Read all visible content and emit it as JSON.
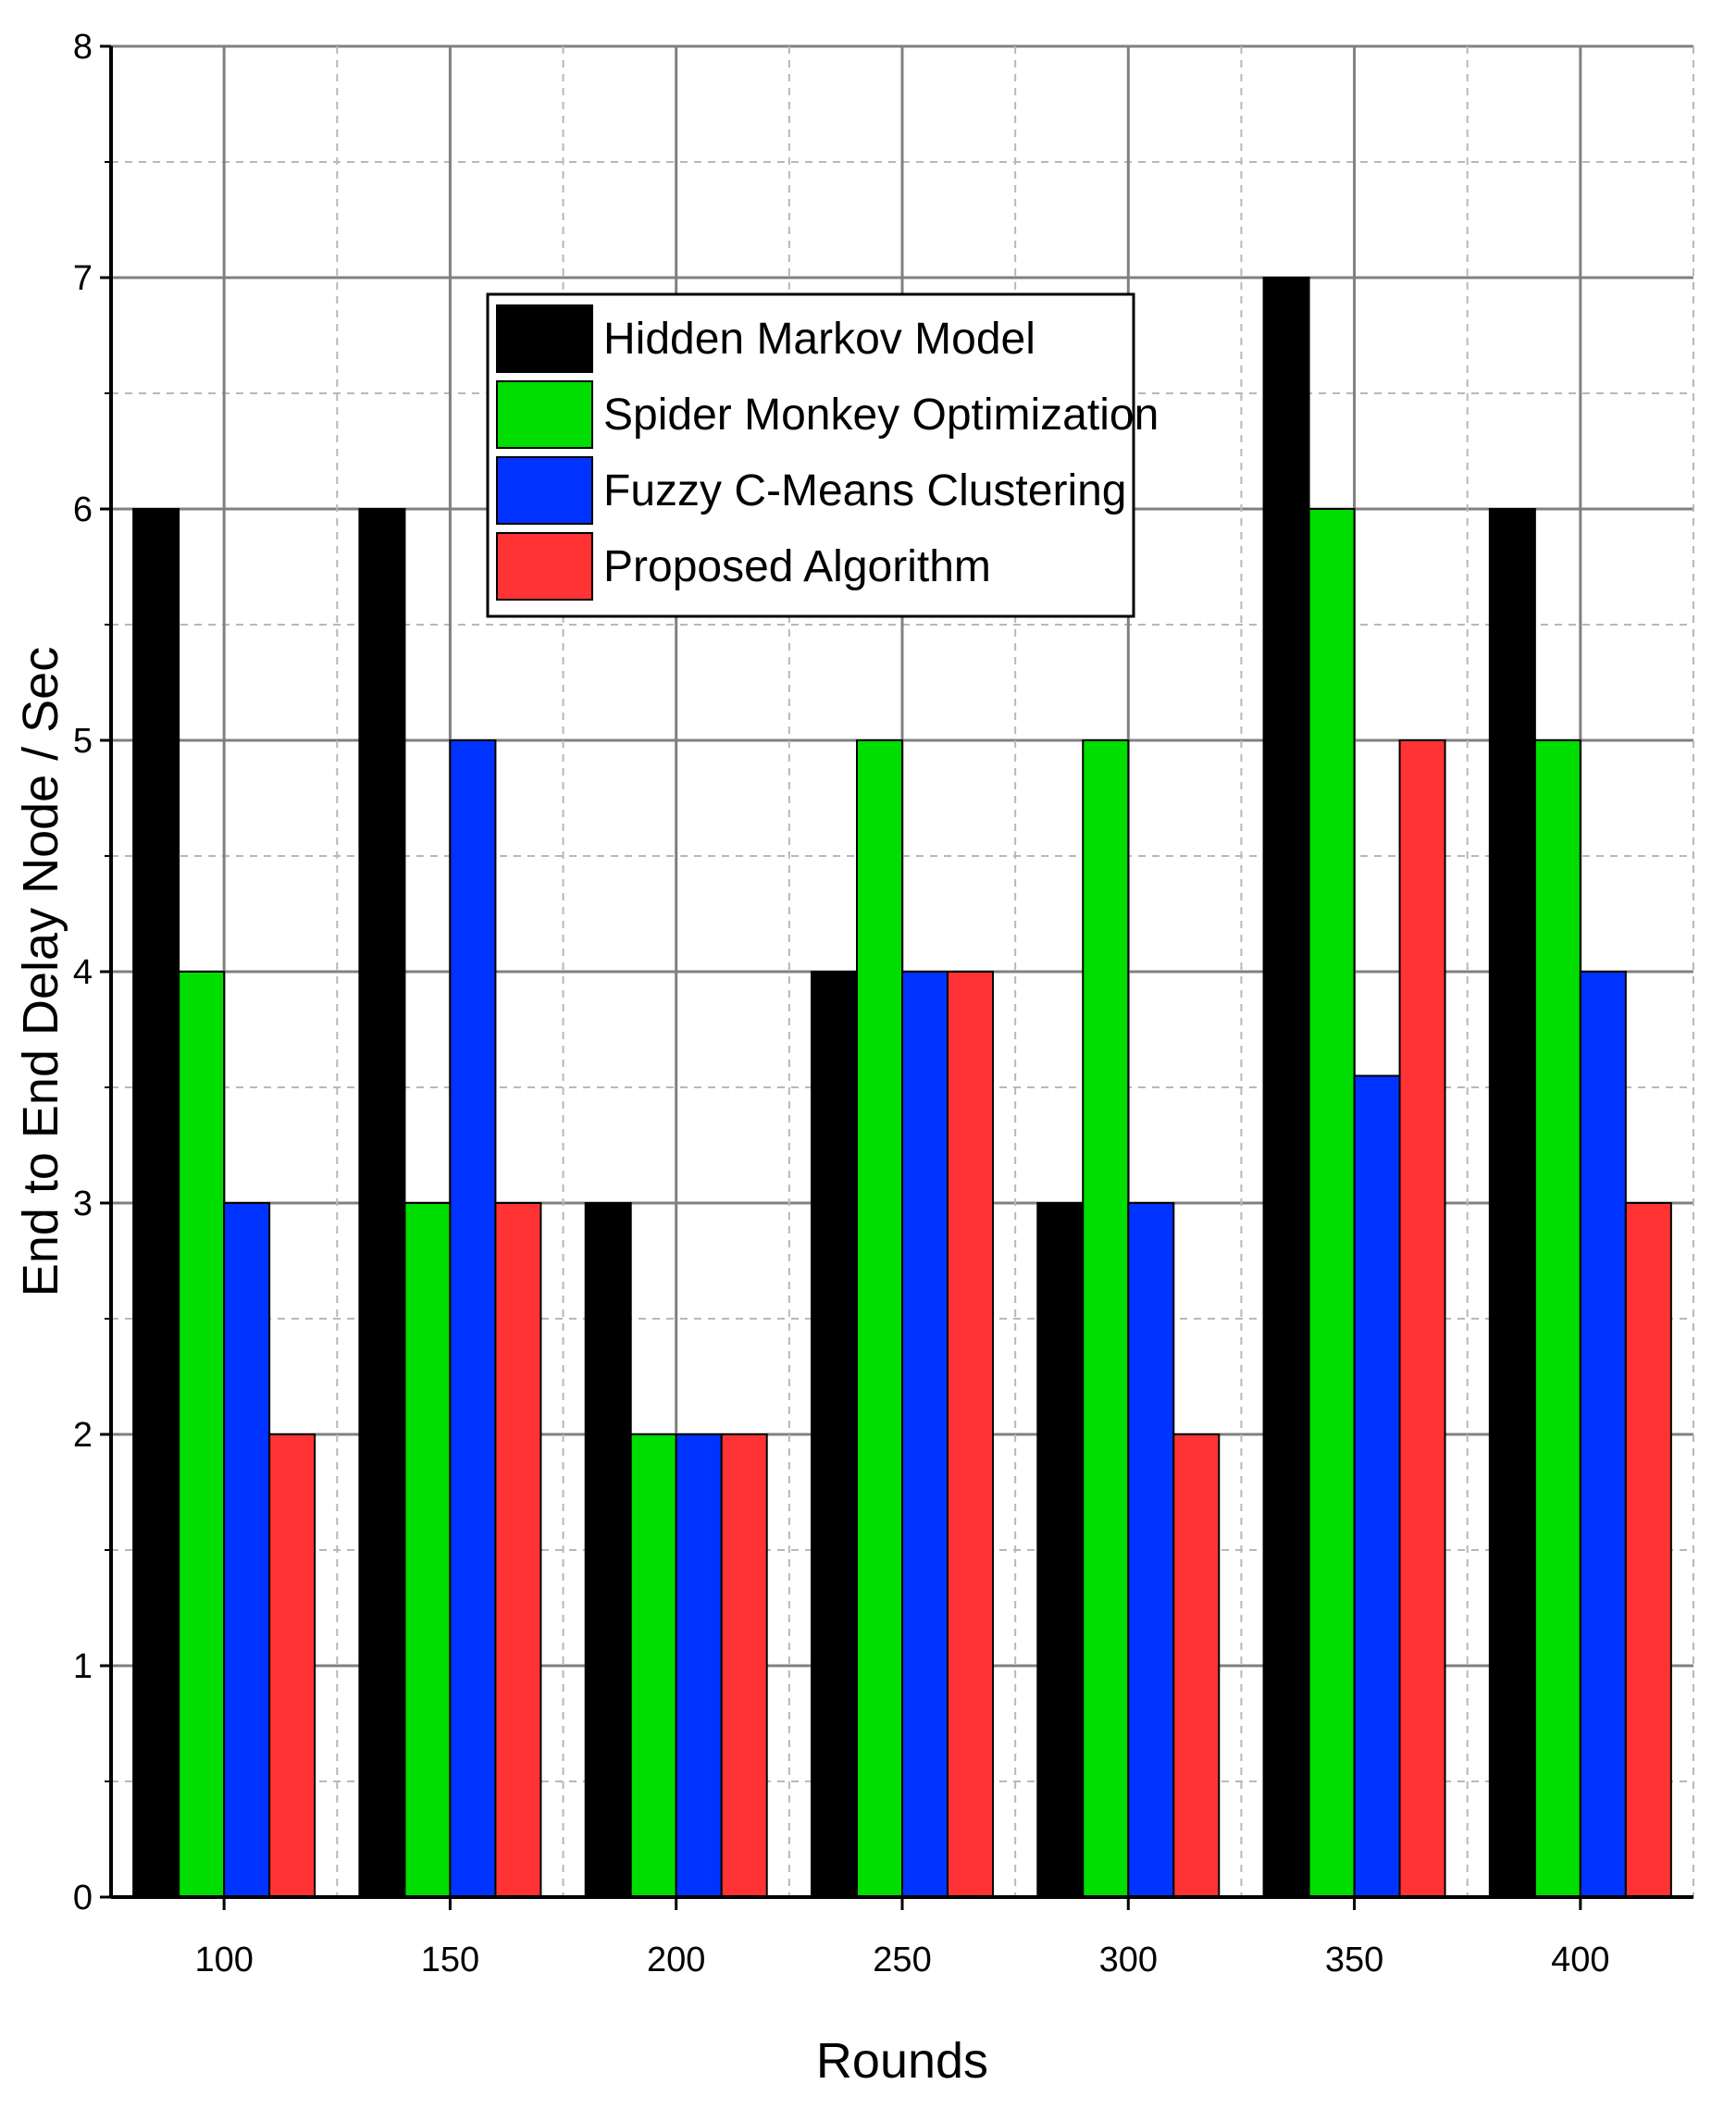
{
  "chart_data": {
    "type": "bar",
    "categories": [
      "100",
      "150",
      "200",
      "250",
      "300",
      "350",
      "400"
    ],
    "series": [
      {
        "name": "Hidden Markov Model",
        "color": "#000000",
        "values": [
          6,
          6,
          3,
          4,
          3,
          7,
          6
        ]
      },
      {
        "name": "Spider Monkey Optimization",
        "color": "#00dd00",
        "values": [
          4,
          3,
          2,
          5,
          5,
          6,
          5
        ]
      },
      {
        "name": "Fuzzy C-Means Clustering",
        "color": "#0033ff",
        "values": [
          3,
          5,
          2,
          4,
          3,
          3.55,
          4
        ]
      },
      {
        "name": "Proposed Algorithm",
        "color": "#ff3333",
        "values": [
          2,
          3,
          2,
          4,
          2,
          5,
          3
        ]
      }
    ],
    "xlabel": "Rounds",
    "ylabel": "End to End Delay Node / Sec",
    "ylim": [
      0,
      8
    ],
    "yticks": [
      "0",
      "1",
      "2",
      "3",
      "4",
      "5",
      "6",
      "7",
      "8"
    ],
    "grid": true,
    "legend_position": "top-center"
  }
}
